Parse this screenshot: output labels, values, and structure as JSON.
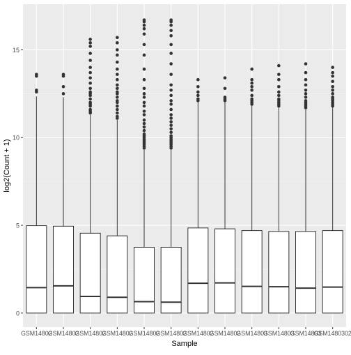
{
  "chart_data": {
    "type": "box",
    "title": "",
    "xlabel": "Sample",
    "ylabel": "log2(Count + 1)",
    "ylim": [
      -0.8,
      17.6
    ],
    "yticks": [
      0,
      5,
      10,
      15
    ],
    "grid": true,
    "legend": "none",
    "colors": {
      "panel": "#ebebeb",
      "grid_major": "#ffffff",
      "grid_minor": "#f5f5f5",
      "box_fill": "#ffffff",
      "box_line": "#333333",
      "point": "#333333",
      "tick_text": "#4d4d4d",
      "axis_title": "#000000"
    },
    "categories": [
      "GSM1480291",
      "GSM1480292",
      "GSM1480293",
      "GSM1480294",
      "GSM1480295",
      "GSM1480296",
      "GSM1480297",
      "GSM1480298",
      "GSM1480299",
      "GSM1480300",
      "GSM1480301",
      "GSM1480302"
    ],
    "tick_labels": [
      "GSM14802",
      "GSM14802",
      "GSM14802",
      "GSM14802",
      "GSM14802",
      "GSM14802",
      "GSM14802",
      "GSM14802",
      "GSM14803",
      "GSM14803",
      "GSM14803",
      "GSM1480302"
    ],
    "boxes": [
      {
        "min": 0,
        "q1": 0,
        "median": 1.45,
        "q3": 4.98,
        "max": 12.35,
        "outliers": [
          12.6,
          12.7,
          13.5,
          13.6
        ]
      },
      {
        "min": 0,
        "q1": 0,
        "median": 1.55,
        "q3": 4.95,
        "max": 12.3,
        "outliers": [
          12.5,
          12.9,
          13.5,
          13.6
        ]
      },
      {
        "min": 0,
        "q1": 0,
        "median": 0.95,
        "q3": 4.55,
        "max": 11.3,
        "outliers": [
          11.4,
          11.5,
          11.6,
          11.8,
          11.9,
          12.0,
          12.2,
          12.4,
          12.5,
          12.6,
          12.8,
          13.1,
          13.4,
          13.7,
          14.0,
          14.4,
          14.8,
          15.2,
          15.4,
          15.6
        ]
      },
      {
        "min": 0,
        "q1": 0,
        "median": 0.9,
        "q3": 4.4,
        "max": 11.0,
        "outliers": [
          11.1,
          11.2,
          11.4,
          11.6,
          11.8,
          12.0,
          12.1,
          12.3,
          12.5,
          12.6,
          12.8,
          13.0,
          13.3,
          13.6,
          13.9,
          14.3,
          14.7,
          15.0,
          15.4,
          15.7
        ]
      },
      {
        "min": 0,
        "q1": 0,
        "median": 0.65,
        "q3": 3.75,
        "max": 9.3,
        "outliers": [
          9.4,
          9.5,
          9.6,
          9.7,
          9.8,
          9.9,
          10.0,
          10.1,
          10.2,
          10.4,
          10.6,
          10.8,
          11.0,
          11.3,
          11.5,
          11.8,
          12.0,
          12.3,
          12.5,
          12.8,
          13.3,
          13.9,
          14.7,
          15.3,
          15.9,
          16.2,
          16.4,
          16.6,
          16.7
        ]
      },
      {
        "min": 0,
        "q1": 0,
        "median": 0.62,
        "q3": 3.75,
        "max": 9.3,
        "outliers": [
          9.4,
          9.5,
          9.6,
          9.7,
          9.8,
          9.9,
          10.0,
          10.1,
          10.3,
          10.5,
          10.7,
          10.9,
          11.1,
          11.3,
          11.6,
          11.9,
          12.1,
          12.4,
          12.7,
          13.0,
          13.6,
          14.2,
          14.8,
          15.3,
          15.8,
          16.1,
          16.4,
          16.6,
          16.7
        ]
      },
      {
        "min": 0,
        "q1": 0,
        "median": 1.7,
        "q3": 4.85,
        "max": 12.0,
        "outliers": [
          12.1,
          12.2,
          12.4,
          12.6,
          12.9,
          13.3
        ]
      },
      {
        "min": 0,
        "q1": 0,
        "median": 1.72,
        "q3": 4.8,
        "max": 12.0,
        "outliers": [
          12.1,
          12.2,
          12.3,
          12.8,
          13.4
        ]
      },
      {
        "min": 0,
        "q1": 0,
        "median": 1.52,
        "q3": 4.7,
        "max": 11.85,
        "outliers": [
          11.9,
          12.0,
          12.1,
          12.2,
          12.4,
          12.7,
          12.9,
          13.1,
          13.3,
          13.9
        ]
      },
      {
        "min": 0,
        "q1": 0,
        "median": 1.5,
        "q3": 4.65,
        "max": 11.75,
        "outliers": [
          11.8,
          11.9,
          12.0,
          12.1,
          12.2,
          12.4,
          12.6,
          12.9,
          13.3,
          13.6,
          14.1
        ]
      },
      {
        "min": 0,
        "q1": 0,
        "median": 1.42,
        "q3": 4.65,
        "max": 11.6,
        "outliers": [
          11.7,
          11.8,
          11.9,
          12.0,
          12.1,
          12.3,
          12.5,
          12.7,
          13.0,
          13.3,
          13.7,
          14.2
        ]
      },
      {
        "min": 0,
        "q1": 0,
        "median": 1.48,
        "q3": 4.7,
        "max": 11.75,
        "outliers": [
          11.8,
          11.9,
          12.0,
          12.1,
          12.2,
          12.3,
          12.5,
          12.7,
          12.9,
          13.2,
          13.5,
          13.7,
          14.0
        ]
      }
    ]
  }
}
